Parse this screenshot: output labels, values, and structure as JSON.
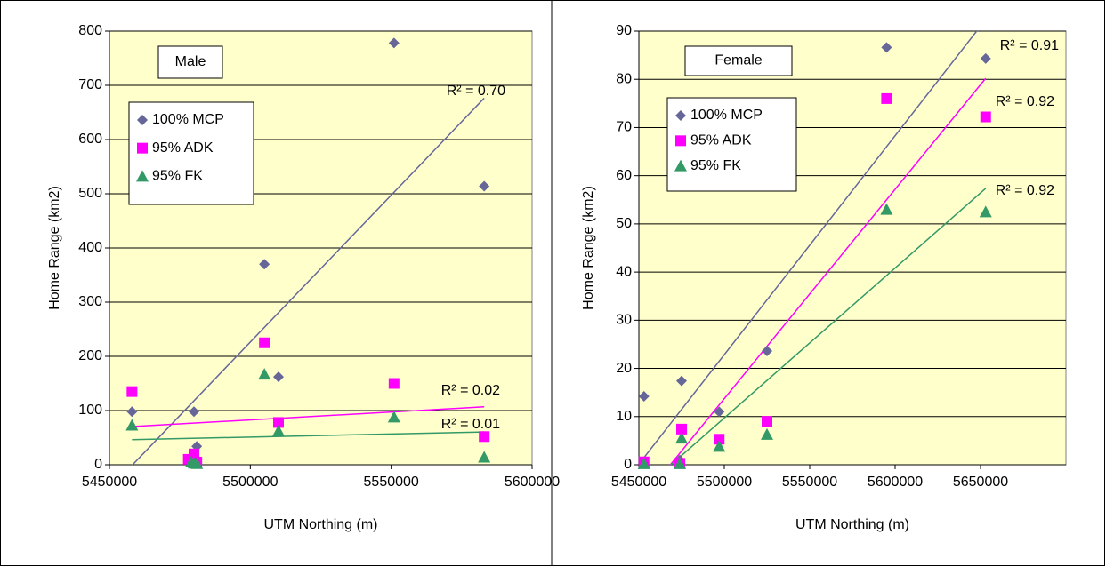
{
  "chart_data": [
    {
      "type": "scatter",
      "title": "Male",
      "x_label": "UTM Northing (m)",
      "y_label": "Home Range (km2)",
      "xlim": [
        5450000,
        5600000
      ],
      "xticks": [
        5450000,
        5500000,
        5550000,
        5600000
      ],
      "ylim": [
        0,
        800
      ],
      "yticks": [
        0,
        100,
        200,
        300,
        400,
        500,
        600,
        700,
        800
      ],
      "grid": true,
      "series": [
        {
          "name": "100% MCP",
          "color": "#666699",
          "marker": "diamond",
          "trendline": true,
          "r2_label": "R² = 0.70",
          "x": [
            5458000,
            5479000,
            5480000,
            5481000,
            5505000,
            5510000,
            5551000,
            5583000
          ],
          "values": [
            98,
            12,
            98,
            34,
            370,
            162,
            778,
            514
          ]
        },
        {
          "name": "95% ADK",
          "color": "#ff00ff",
          "marker": "square",
          "trendline": true,
          "r2_label": "R² = 0.02",
          "x": [
            5458000,
            5478000,
            5480000,
            5481000,
            5505000,
            5510000,
            5551000,
            5583000
          ],
          "values": [
            135,
            10,
            20,
            5,
            225,
            78,
            150,
            52
          ]
        },
        {
          "name": "95% FK",
          "color": "#339966",
          "marker": "triangle",
          "trendline": true,
          "r2_label": "R² = 0.01",
          "x": [
            5458000,
            5479000,
            5480000,
            5481000,
            5505000,
            5510000,
            5551000,
            5583000
          ],
          "values": [
            73,
            5,
            3,
            2,
            167,
            62,
            88,
            14
          ]
        }
      ]
    },
    {
      "type": "scatter",
      "title": "Female",
      "x_label": "UTM Northing (m)",
      "y_label": "Home Range (km2)",
      "xlim": [
        5450000,
        5700000
      ],
      "xticks": [
        5450000,
        5500000,
        5550000,
        5600000,
        5650000
      ],
      "ylim": [
        0,
        90
      ],
      "yticks": [
        0,
        10,
        20,
        30,
        40,
        50,
        60,
        70,
        80,
        90
      ],
      "grid": true,
      "series": [
        {
          "name": "100% MCP",
          "color": "#666699",
          "marker": "diamond",
          "trendline": true,
          "r2_label": "R² = 0.91",
          "x": [
            5453000,
            5474000,
            5475000,
            5497000,
            5525000,
            5595000,
            5653000
          ],
          "values": [
            14.2,
            1,
            17.4,
            11,
            23.6,
            86.6,
            84.3
          ]
        },
        {
          "name": "95% ADK",
          "color": "#ff00ff",
          "marker": "square",
          "trendline": true,
          "r2_label": "R² = 0.92",
          "x": [
            5453000,
            5474000,
            5475000,
            5497000,
            5525000,
            5595000,
            5653000
          ],
          "values": [
            0.6,
            0.3,
            7.4,
            5.3,
            9,
            76,
            72.2
          ]
        },
        {
          "name": "95% FK",
          "color": "#339966",
          "marker": "triangle",
          "trendline": true,
          "r2_label": "R² = 0.92",
          "x": [
            5453000,
            5474000,
            5475000,
            5497000,
            5525000,
            5595000,
            5653000
          ],
          "values": [
            0.2,
            0.2,
            5.5,
            3.8,
            6.3,
            53,
            52.5
          ]
        }
      ]
    }
  ]
}
